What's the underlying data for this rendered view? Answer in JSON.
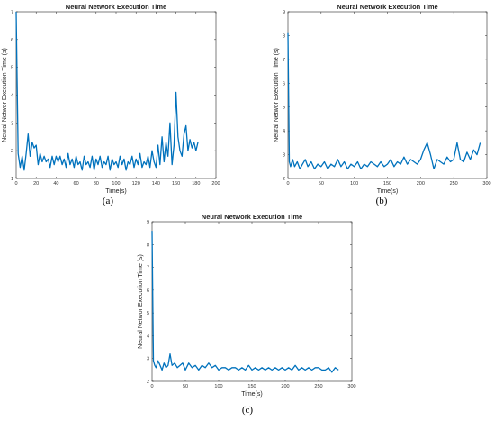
{
  "chart_data": [
    {
      "id": "a",
      "type": "line",
      "title": "Neural Network Execution Time",
      "xlabel": "Time(s)",
      "ylabel": "Neural Networ Execution Time (s)",
      "caption": "(a)",
      "xlim": [
        0,
        200
      ],
      "ylim": [
        1,
        7
      ],
      "xticks": [
        0,
        20,
        40,
        60,
        80,
        100,
        120,
        140,
        160,
        180,
        200
      ],
      "yticks": [
        1,
        2,
        3,
        4,
        5,
        6,
        7
      ],
      "color": "#0072BD",
      "x": [
        0,
        2,
        4,
        6,
        8,
        10,
        12,
        14,
        16,
        18,
        20,
        22,
        24,
        26,
        28,
        30,
        32,
        34,
        36,
        38,
        40,
        42,
        44,
        46,
        48,
        50,
        52,
        54,
        56,
        58,
        60,
        62,
        64,
        66,
        68,
        70,
        72,
        74,
        76,
        78,
        80,
        82,
        84,
        86,
        88,
        90,
        92,
        94,
        96,
        98,
        100,
        102,
        104,
        106,
        108,
        110,
        112,
        114,
        116,
        118,
        120,
        122,
        124,
        126,
        128,
        130,
        132,
        134,
        136,
        138,
        140,
        142,
        144,
        146,
        148,
        150,
        152,
        154,
        156,
        158,
        160,
        162,
        164,
        166,
        168,
        170,
        172,
        174,
        176,
        178,
        180,
        182
      ],
      "y": [
        7.0,
        1.9,
        1.4,
        1.8,
        1.3,
        1.9,
        2.6,
        1.8,
        2.3,
        2.1,
        2.2,
        1.5,
        1.9,
        1.6,
        1.8,
        1.6,
        1.7,
        1.4,
        1.8,
        1.5,
        1.8,
        1.6,
        1.8,
        1.5,
        1.7,
        1.4,
        1.9,
        1.5,
        1.7,
        1.4,
        1.8,
        1.5,
        1.6,
        1.3,
        1.8,
        1.5,
        1.6,
        1.4,
        1.8,
        1.3,
        1.7,
        1.5,
        1.8,
        1.4,
        1.6,
        1.5,
        1.8,
        1.3,
        1.7,
        1.5,
        1.6,
        1.4,
        1.8,
        1.5,
        1.7,
        1.3,
        1.6,
        1.5,
        1.8,
        1.4,
        1.7,
        1.5,
        1.9,
        1.4,
        1.6,
        1.5,
        1.8,
        1.4,
        2.0,
        1.6,
        1.4,
        2.2,
        1.5,
        2.5,
        1.6,
        2.3,
        1.8,
        3.0,
        1.5,
        2.2,
        4.1,
        2.5,
        2.0,
        1.8,
        2.6,
        2.9,
        2.0,
        2.4,
        2.1,
        2.3,
        2.0,
        2.3
      ]
    },
    {
      "id": "b",
      "type": "line",
      "title": "Neural Network Execution Time",
      "xlabel": "Time(s)",
      "ylabel": "Neural Networ Execution Time (s)",
      "caption": "(b)",
      "xlim": [
        0,
        300
      ],
      "ylim": [
        2,
        9
      ],
      "xticks": [
        0,
        50,
        100,
        150,
        200,
        250,
        300
      ],
      "yticks": [
        2,
        3,
        4,
        5,
        6,
        7,
        8,
        9
      ],
      "color": "#0072BD",
      "x": [
        0,
        2,
        4,
        7,
        10,
        14,
        18,
        22,
        26,
        30,
        35,
        40,
        45,
        50,
        55,
        60,
        65,
        70,
        75,
        80,
        85,
        90,
        95,
        100,
        105,
        110,
        115,
        120,
        125,
        130,
        135,
        140,
        145,
        150,
        155,
        160,
        165,
        170,
        175,
        180,
        185,
        190,
        195,
        200,
        205,
        210,
        215,
        220,
        225,
        230,
        235,
        240,
        245,
        250,
        255,
        260,
        265,
        270,
        275,
        280,
        285,
        290
      ],
      "y": [
        8.1,
        2.7,
        2.5,
        2.8,
        2.5,
        2.7,
        2.4,
        2.6,
        2.8,
        2.5,
        2.7,
        2.4,
        2.6,
        2.5,
        2.7,
        2.4,
        2.6,
        2.5,
        2.8,
        2.5,
        2.7,
        2.4,
        2.6,
        2.5,
        2.7,
        2.4,
        2.6,
        2.5,
        2.7,
        2.6,
        2.5,
        2.7,
        2.5,
        2.6,
        2.8,
        2.5,
        2.7,
        2.6,
        2.9,
        2.6,
        2.8,
        2.7,
        2.6,
        2.8,
        3.2,
        3.5,
        3.0,
        2.4,
        2.8,
        2.7,
        2.6,
        2.9,
        2.7,
        2.8,
        3.5,
        2.8,
        2.7,
        3.1,
        2.8,
        3.2,
        3.0,
        3.5
      ]
    },
    {
      "id": "c",
      "type": "line",
      "title": "Neural Network Execution Time",
      "xlabel": "Time(s)",
      "ylabel": "Neural Networ Execution Time (s)",
      "caption": "(c)",
      "xlim": [
        0,
        300
      ],
      "ylim": [
        2,
        9
      ],
      "xticks": [
        0,
        50,
        100,
        150,
        200,
        250,
        300
      ],
      "yticks": [
        2,
        3,
        4,
        5,
        6,
        7,
        8,
        9
      ],
      "color": "#0072BD",
      "x": [
        0,
        2,
        4,
        6,
        9,
        12,
        15,
        18,
        21,
        24,
        27,
        30,
        34,
        38,
        42,
        46,
        50,
        55,
        60,
        65,
        70,
        75,
        80,
        85,
        90,
        95,
        100,
        105,
        110,
        115,
        120,
        125,
        130,
        135,
        140,
        145,
        150,
        155,
        160,
        165,
        170,
        175,
        180,
        185,
        190,
        195,
        200,
        205,
        210,
        215,
        220,
        225,
        230,
        235,
        240,
        245,
        250,
        255,
        260,
        265,
        270,
        275,
        280
      ],
      "y": [
        8.6,
        2.9,
        2.7,
        2.6,
        2.9,
        2.7,
        2.5,
        2.8,
        2.6,
        2.7,
        3.2,
        2.7,
        2.8,
        2.6,
        2.7,
        2.8,
        2.5,
        2.8,
        2.6,
        2.7,
        2.5,
        2.7,
        2.6,
        2.8,
        2.6,
        2.7,
        2.5,
        2.6,
        2.6,
        2.5,
        2.6,
        2.6,
        2.5,
        2.6,
        2.5,
        2.7,
        2.5,
        2.6,
        2.5,
        2.6,
        2.5,
        2.6,
        2.5,
        2.6,
        2.5,
        2.6,
        2.5,
        2.6,
        2.5,
        2.7,
        2.5,
        2.6,
        2.5,
        2.6,
        2.5,
        2.6,
        2.6,
        2.5,
        2.5,
        2.6,
        2.4,
        2.6,
        2.5
      ]
    }
  ]
}
